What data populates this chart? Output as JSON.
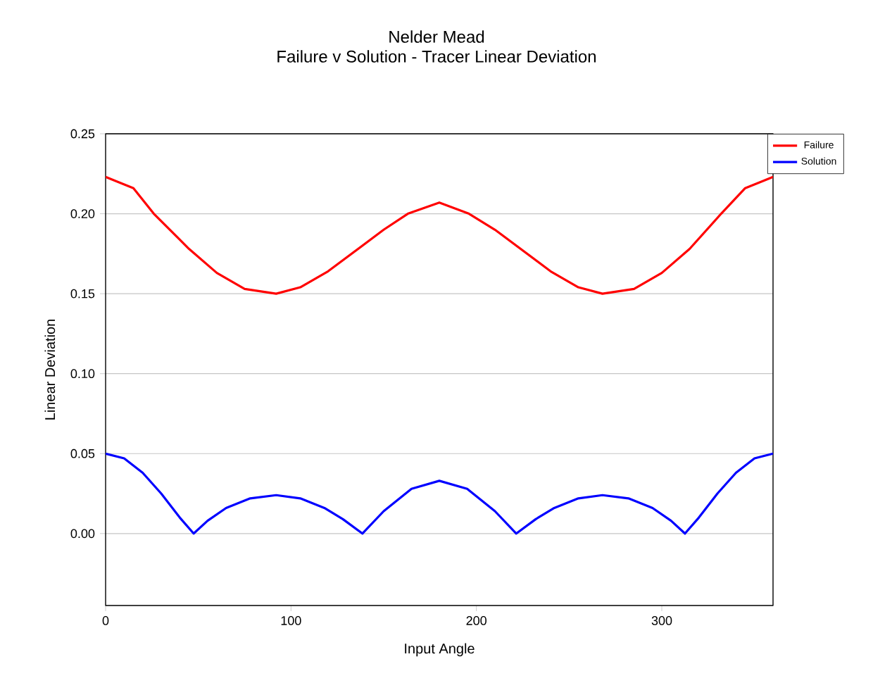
{
  "chart_data": {
    "type": "line",
    "title": "Nelder Mead",
    "subtitle": "Failure v Solution - Tracer Linear Deviation",
    "xlabel": "Input Angle",
    "ylabel": "Linear Deviation",
    "xlim": [
      0,
      360
    ],
    "xticks": [
      0,
      100,
      200,
      300
    ],
    "ylim": [
      -0.045,
      0.25
    ],
    "yticks": [
      {
        "value": 0,
        "label": "0.00"
      },
      {
        "value": 0.05,
        "label": "0.05"
      },
      {
        "value": 0.1,
        "label": "0.10"
      },
      {
        "value": 0.15,
        "label": "0.15"
      },
      {
        "value": 0.2,
        "label": "0.20"
      },
      {
        "value": 0.25,
        "label": "0.25"
      }
    ],
    "grid": "y",
    "legend": "top right",
    "marker": "none",
    "line_style": "solid",
    "series": [
      {
        "name": "Failure",
        "color": "#ff0000",
        "x": [
          0,
          15,
          26,
          45,
          60,
          75,
          92,
          105,
          120,
          135,
          150,
          163,
          180,
          196,
          210,
          225,
          240,
          255,
          268,
          285,
          300,
          315,
          332,
          345,
          360
        ],
        "values": [
          0.223,
          0.216,
          0.2,
          0.178,
          0.163,
          0.153,
          0.15,
          0.154,
          0.164,
          0.177,
          0.19,
          0.2,
          0.207,
          0.2,
          0.19,
          0.177,
          0.164,
          0.154,
          0.15,
          0.153,
          0.163,
          0.178,
          0.2,
          0.216,
          0.223
        ]
      },
      {
        "name": "Solution",
        "color": "#0000ff",
        "x": [
          0,
          10,
          20,
          30,
          40,
          47.5,
          55,
          65,
          78,
          92,
          105,
          118,
          128,
          138.5,
          150,
          165,
          180,
          195,
          210,
          221.5,
          232,
          242,
          255,
          268,
          282,
          295,
          305,
          312.5,
          320,
          330,
          340,
          350,
          360
        ],
        "values": [
          0.05,
          0.047,
          0.038,
          0.025,
          0.01,
          0,
          0.008,
          0.016,
          0.022,
          0.024,
          0.022,
          0.016,
          0.009,
          0,
          0.014,
          0.028,
          0.033,
          0.028,
          0.014,
          0,
          0.009,
          0.016,
          0.022,
          0.024,
          0.022,
          0.016,
          0.008,
          0,
          0.01,
          0.025,
          0.038,
          0.047,
          0.05
        ]
      }
    ]
  }
}
